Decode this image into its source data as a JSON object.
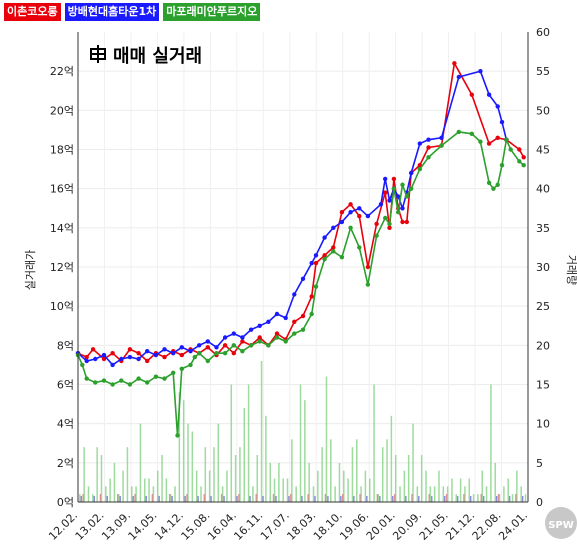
{
  "legend": [
    {
      "label": "이촌코오롱",
      "color": "#e8000b"
    },
    {
      "label": "방배현대홈타운1차",
      "color": "#1a1aff"
    },
    {
      "label": "마포래미안푸르지오",
      "color": "#2ca02c"
    }
  ],
  "chart_data": {
    "type": "line",
    "title": "매매 실거래",
    "ylabel": "실거래가",
    "y2label": "거래량",
    "x_ticks": [
      "12.02.",
      "13.02.",
      "13.09.",
      "14.05.",
      "14.12.",
      "15.08.",
      "16.04.",
      "16.11.",
      "17.07.",
      "18.03.",
      "18.10.",
      "19.06.",
      "20.01.",
      "20.09.",
      "21.05.",
      "21.12.",
      "22.08.",
      "24.01."
    ],
    "y_ticks": [
      "0억",
      "2억",
      "4억",
      "6억",
      "8억",
      "10억",
      "12억",
      "14억",
      "16억",
      "18억",
      "20억",
      "22억"
    ],
    "y_range": [
      0,
      24
    ],
    "y2_ticks": [
      "0",
      "5",
      "10",
      "15",
      "20",
      "25",
      "30",
      "35",
      "40",
      "45",
      "50",
      "55",
      "60"
    ],
    "y2_range": [
      0,
      60
    ],
    "series": [
      {
        "name": "이촌코오롱",
        "color": "#e8000b",
        "points": [
          [
            0,
            7.6
          ],
          [
            2,
            7.4
          ],
          [
            3.5,
            7.8
          ],
          [
            6,
            7.3
          ],
          [
            8,
            7.6
          ],
          [
            10,
            7.2
          ],
          [
            12,
            7.8
          ],
          [
            14,
            7.6
          ],
          [
            16,
            7.2
          ],
          [
            18,
            7.6
          ],
          [
            20,
            7.4
          ],
          [
            22,
            7.7
          ],
          [
            24,
            7.5
          ],
          [
            26,
            7.8
          ],
          [
            28,
            7.6
          ],
          [
            30,
            7.9
          ],
          [
            32,
            7.5
          ],
          [
            34,
            8.0
          ],
          [
            36,
            7.6
          ],
          [
            38,
            8.2
          ],
          [
            40,
            8.0
          ],
          [
            42,
            8.4
          ],
          [
            44,
            8.0
          ],
          [
            46,
            8.6
          ],
          [
            48,
            8.3
          ],
          [
            50,
            9.2
          ],
          [
            52,
            9.5
          ],
          [
            54,
            10.5
          ],
          [
            55,
            12.2
          ],
          [
            57,
            12.6
          ],
          [
            59,
            13.0
          ],
          [
            61,
            14.8
          ],
          [
            63,
            15.2
          ],
          [
            65,
            14.6
          ],
          [
            67,
            12.0
          ],
          [
            69,
            14.2
          ],
          [
            71,
            15.8
          ],
          [
            72,
            14.0
          ],
          [
            73,
            16.5
          ],
          [
            74,
            15.0
          ],
          [
            75,
            14.3
          ],
          [
            76,
            14.3
          ],
          [
            77,
            16.8
          ],
          [
            79,
            17.2
          ],
          [
            81,
            18.1
          ],
          [
            84,
            18.2
          ],
          [
            87,
            22.4
          ],
          [
            91,
            20.8
          ],
          [
            95,
            18.3
          ],
          [
            97,
            18.6
          ],
          [
            99,
            18.5
          ],
          [
            102,
            18.0
          ],
          [
            103,
            17.6
          ]
        ]
      },
      {
        "name": "방배현대홈타운1차",
        "color": "#1a1aff",
        "points": [
          [
            0,
            7.6
          ],
          [
            2,
            7.2
          ],
          [
            4,
            7.3
          ],
          [
            6,
            7.5
          ],
          [
            8,
            7.0
          ],
          [
            10,
            7.3
          ],
          [
            12,
            7.4
          ],
          [
            14,
            7.3
          ],
          [
            16,
            7.7
          ],
          [
            18,
            7.5
          ],
          [
            20,
            7.8
          ],
          [
            22,
            7.6
          ],
          [
            24,
            7.9
          ],
          [
            26,
            7.7
          ],
          [
            28,
            8.0
          ],
          [
            30,
            8.2
          ],
          [
            32,
            7.9
          ],
          [
            34,
            8.4
          ],
          [
            36,
            8.6
          ],
          [
            38,
            8.4
          ],
          [
            40,
            8.8
          ],
          [
            42,
            9.0
          ],
          [
            44,
            9.2
          ],
          [
            46,
            9.6
          ],
          [
            48,
            9.4
          ],
          [
            50,
            10.6
          ],
          [
            52,
            11.4
          ],
          [
            54,
            12.2
          ],
          [
            55,
            12.6
          ],
          [
            57,
            13.5
          ],
          [
            59,
            14.0
          ],
          [
            61,
            14.3
          ],
          [
            63,
            14.8
          ],
          [
            65,
            15.0
          ],
          [
            67,
            14.6
          ],
          [
            70,
            15.2
          ],
          [
            71,
            16.5
          ],
          [
            72,
            15.4
          ],
          [
            73,
            16.0
          ],
          [
            74,
            15.6
          ],
          [
            75,
            15.0
          ],
          [
            76,
            15.8
          ],
          [
            77,
            16.8
          ],
          [
            79,
            18.3
          ],
          [
            81,
            18.5
          ],
          [
            84,
            18.6
          ],
          [
            88,
            21.7
          ],
          [
            93,
            22.0
          ],
          [
            95,
            20.8
          ],
          [
            97,
            20.2
          ],
          [
            98,
            19.4
          ],
          [
            99,
            18.5
          ]
        ]
      },
      {
        "name": "마포래미안푸르지오",
        "color": "#2ca02c",
        "points": [
          [
            0,
            7.5
          ],
          [
            1,
            7.0
          ],
          [
            2,
            6.3
          ],
          [
            4,
            6.1
          ],
          [
            6,
            6.2
          ],
          [
            8,
            6.0
          ],
          [
            10,
            6.2
          ],
          [
            12,
            6.0
          ],
          [
            14,
            6.3
          ],
          [
            16,
            6.1
          ],
          [
            18,
            6.4
          ],
          [
            20,
            6.3
          ],
          [
            22,
            6.6
          ],
          [
            23,
            3.4
          ],
          [
            24,
            6.8
          ],
          [
            26,
            7.0
          ],
          [
            27,
            7.4
          ],
          [
            28,
            7.6
          ],
          [
            30,
            7.2
          ],
          [
            32,
            7.6
          ],
          [
            34,
            7.6
          ],
          [
            36,
            8.0
          ],
          [
            38,
            7.7
          ],
          [
            40,
            8.0
          ],
          [
            42,
            8.2
          ],
          [
            44,
            8.0
          ],
          [
            46,
            8.4
          ],
          [
            48,
            8.2
          ],
          [
            50,
            8.6
          ],
          [
            52,
            8.8
          ],
          [
            54,
            9.6
          ],
          [
            55,
            11.0
          ],
          [
            57,
            12.4
          ],
          [
            59,
            12.8
          ],
          [
            61,
            12.5
          ],
          [
            63,
            14.0
          ],
          [
            65,
            13.0
          ],
          [
            67,
            11.1
          ],
          [
            69,
            13.6
          ],
          [
            71,
            14.5
          ],
          [
            72,
            14.2
          ],
          [
            73,
            16.0
          ],
          [
            74,
            14.8
          ],
          [
            75,
            16.2
          ],
          [
            76,
            15.6
          ],
          [
            77,
            16.0
          ],
          [
            79,
            17.0
          ],
          [
            81,
            17.6
          ],
          [
            84,
            18.2
          ],
          [
            88,
            18.9
          ],
          [
            91,
            18.8
          ],
          [
            93,
            18.4
          ],
          [
            95,
            16.3
          ],
          [
            96,
            16.0
          ],
          [
            97,
            16.2
          ],
          [
            98,
            17.2
          ],
          [
            99,
            18.5
          ],
          [
            100,
            18.0
          ],
          [
            102,
            17.4
          ],
          [
            103,
            17.2
          ]
        ]
      }
    ],
    "volume": [
      1,
      7,
      2,
      1,
      7,
      6,
      2,
      3,
      5,
      1,
      4,
      7,
      2,
      2,
      10,
      3,
      3,
      2,
      4,
      6,
      3,
      1,
      2,
      14,
      13,
      10,
      9,
      4,
      2,
      7,
      4,
      7,
      10,
      2,
      4,
      15,
      6,
      7,
      12,
      15,
      2,
      6,
      18,
      11,
      5,
      3,
      5,
      3,
      3,
      8,
      2,
      15,
      13,
      5,
      2,
      4,
      7,
      16,
      8,
      2,
      5,
      4,
      3,
      7,
      8,
      2,
      4,
      3,
      15,
      1,
      7,
      8,
      11,
      6,
      2,
      4,
      6,
      10,
      2,
      6,
      4,
      2,
      2,
      4,
      2,
      2,
      3,
      1,
      3,
      2,
      3,
      1,
      1,
      4,
      2,
      15,
      5,
      1,
      2,
      3,
      1,
      4,
      2,
      1
    ]
  },
  "watermark": "SPW"
}
